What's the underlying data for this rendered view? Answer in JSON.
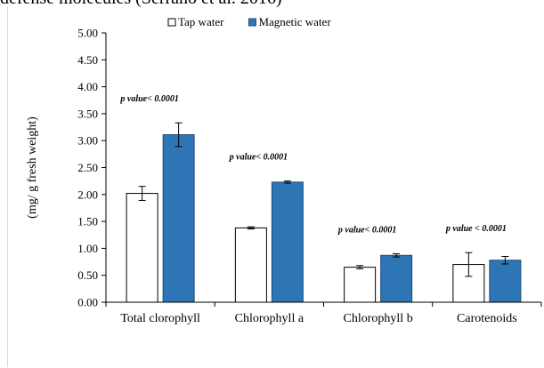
{
  "caption_partial": "defense molecules (Serrano et al. 2016)",
  "chart_data": {
    "type": "bar",
    "ylabel": "(mg/ g fresh weight)",
    "ylim": [
      0,
      5
    ],
    "y_ticks": [
      "0.00",
      "0.50",
      "1.00",
      "1.50",
      "2.00",
      "2.50",
      "3.00",
      "3.50",
      "4.00",
      "4.50",
      "5.00"
    ],
    "categories": [
      "Total clorophyll",
      "Chlorophyll a",
      "Chlorophyll b",
      "Carotenoids"
    ],
    "series": [
      {
        "name": "Tap water",
        "color": "#ffffff",
        "values": [
          2.02,
          1.38,
          0.65,
          0.7
        ],
        "errors": [
          0.13,
          0.02,
          0.03,
          0.22
        ]
      },
      {
        "name": "Magnetic water",
        "color": "#2e75b6",
        "values": [
          3.11,
          2.23,
          0.87,
          0.78
        ],
        "errors": [
          0.22,
          0.02,
          0.03,
          0.07
        ]
      }
    ],
    "annotations": [
      "p value< 0.0001",
      "p value< 0.0001",
      "p value< 0.0001",
      "p value < 0.0001"
    ],
    "legend_position": "top",
    "grid": false
  }
}
